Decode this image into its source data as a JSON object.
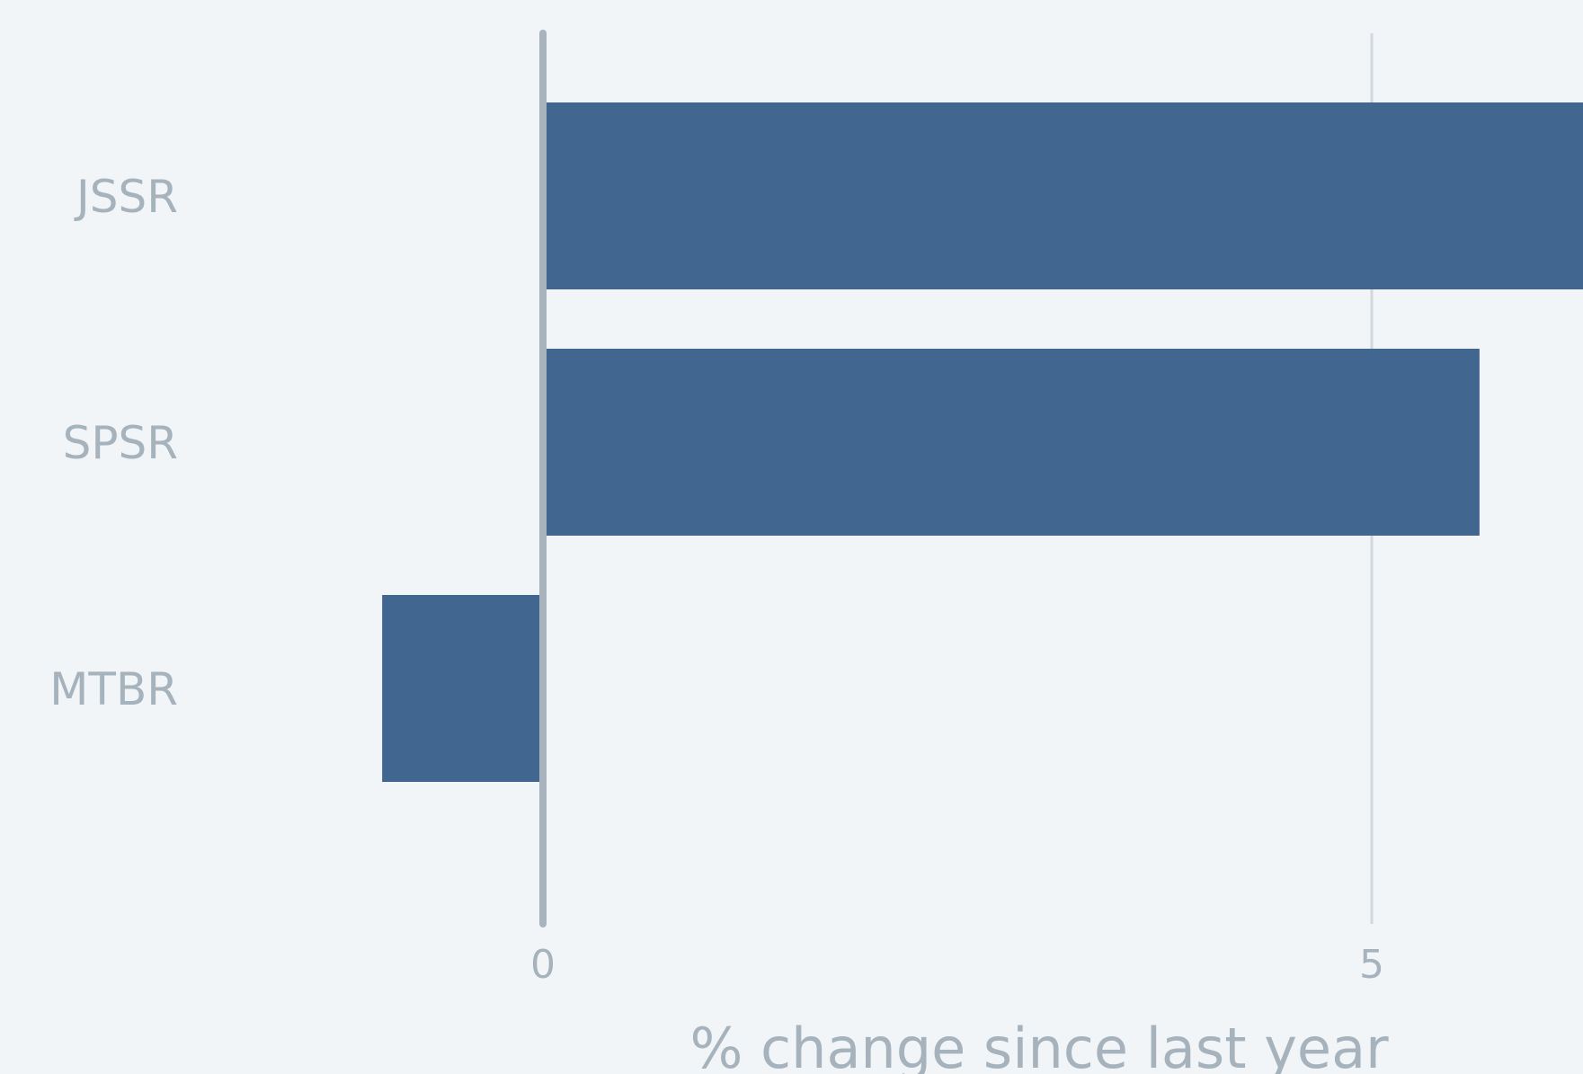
{
  "chart_data": {
    "type": "bar",
    "orientation": "horizontal",
    "categories": [
      "JSSR",
      "SPSR",
      "MTBR"
    ],
    "values": [
      6.3,
      5.65,
      -0.97
    ],
    "title": "",
    "xlabel": "% change since last year",
    "ylabel": "",
    "xlim": [
      -3.3,
      6.3
    ],
    "xticks": [
      0,
      5
    ],
    "grid": true,
    "bar_color": "#41668f",
    "zero_line_color": "#a9b3bd",
    "grid_color": "#d2d8dd",
    "text_color": "#a7b3bc"
  }
}
